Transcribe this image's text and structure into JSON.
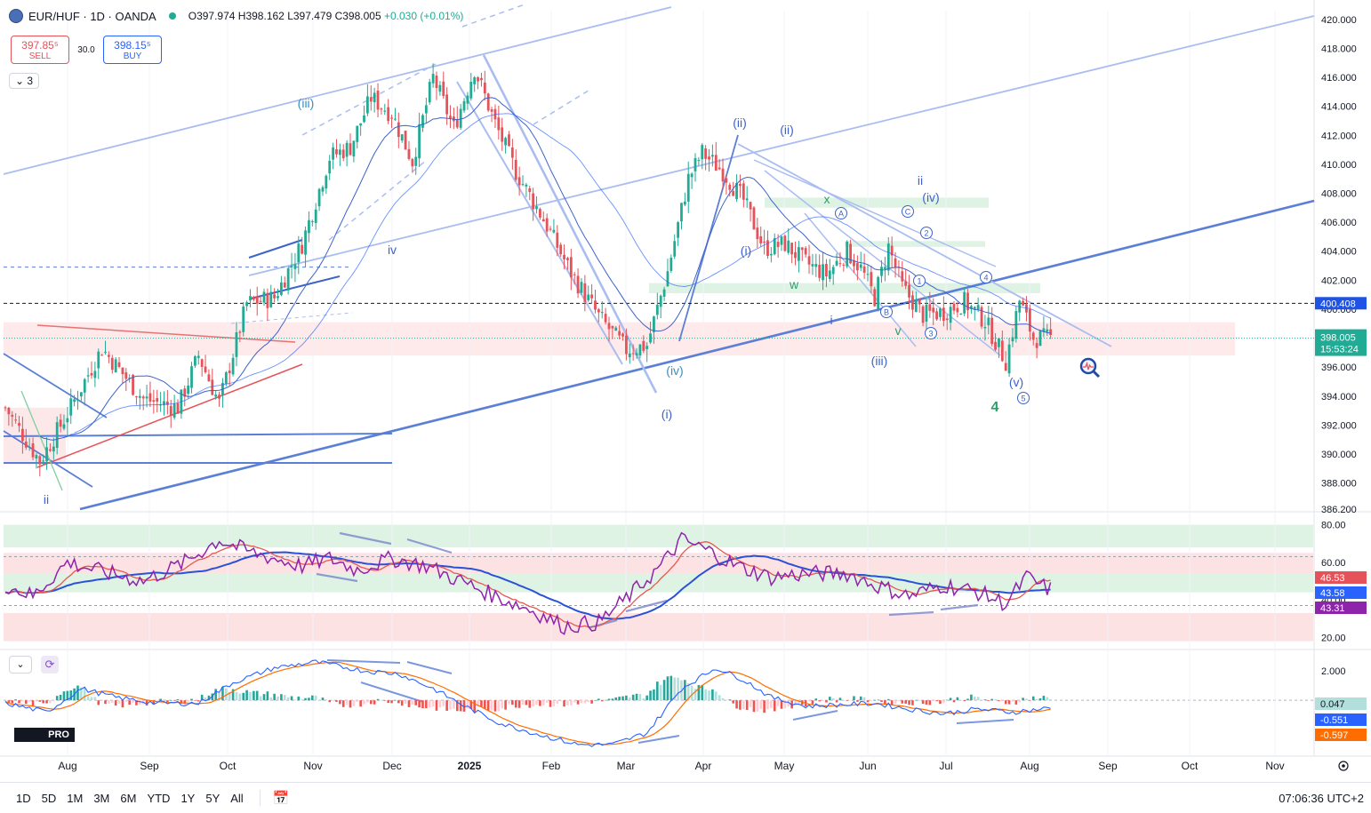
{
  "header": {
    "symbol": "EUR/HUF · 1D · OANDA",
    "open": "O397.974",
    "high": "H398.162",
    "low": "L397.479",
    "close": "C398.005",
    "change": "+0.030 (+0.01%)",
    "sell_price": "397.85⁵",
    "sell_label": "SELL",
    "spread": "30.0",
    "buy_price": "398.15⁵",
    "buy_label": "BUY",
    "indicator_count": "3"
  },
  "colors": {
    "up": "#22ab94",
    "down": "#e5525a",
    "drawing": "#5b7fd6",
    "drawing_light": "#a9bdf0",
    "rsi": "#8e24aa",
    "macd": "#2962ff",
    "signal": "#ff6d00",
    "green_zone": "#dff3e4",
    "red_zone": "#fde2e4"
  },
  "chart_data": [
    {
      "type": "candlestick",
      "symbol": "EUR/HUF",
      "interval": "1D",
      "y_ticks": [
        "420.000",
        "418.000",
        "416.000",
        "414.000",
        "412.000",
        "410.000",
        "408.000",
        "406.000",
        "404.000",
        "402.000",
        "400.000",
        "398.000",
        "396.000",
        "394.000",
        "392.000",
        "390.000",
        "388.000",
        "386.200"
      ],
      "ylim": [
        386.2,
        420.6
      ],
      "x_ticks": [
        "Aug",
        "Sep",
        "Oct",
        "Nov",
        "Dec",
        "2025",
        "Feb",
        "Mar",
        "Apr",
        "May",
        "Jun",
        "Jul",
        "Aug",
        "Sep",
        "Oct",
        "Nov"
      ],
      "last_price": "398.005",
      "countdown": "15:53:24",
      "dashed_level": "400.408",
      "approx_closes": [
        [
          0,
          393.2
        ],
        [
          10,
          389.5
        ],
        [
          18,
          392.8
        ],
        [
          28,
          397.3
        ],
        [
          40,
          393.8
        ],
        [
          50,
          393.2
        ],
        [
          56,
          396.8
        ],
        [
          62,
          393.5
        ],
        [
          70,
          400.4
        ],
        [
          78,
          400.8
        ],
        [
          86,
          404.5
        ],
        [
          94,
          410.5
        ],
        [
          100,
          411.2
        ],
        [
          106,
          414.6
        ],
        [
          112,
          413.5
        ],
        [
          118,
          410.2
        ],
        [
          124,
          416.0
        ],
        [
          130,
          412.5
        ],
        [
          136,
          416.6
        ],
        [
          142,
          412.8
        ],
        [
          148,
          409.5
        ],
        [
          156,
          406.2
        ],
        [
          164,
          402.5
        ],
        [
          172,
          399.5
        ],
        [
          180,
          397.2
        ],
        [
          186,
          397.5
        ],
        [
          192,
          402.6
        ],
        [
          198,
          409.0
        ],
        [
          202,
          410.8
        ],
        [
          208,
          409.5
        ],
        [
          214,
          407.5
        ],
        [
          220,
          404.2
        ],
        [
          226,
          404.5
        ],
        [
          232,
          403.2
        ],
        [
          238,
          402.4
        ],
        [
          244,
          404.0
        ],
        [
          248,
          402.8
        ],
        [
          252,
          400.8
        ],
        [
          256,
          404.3
        ],
        [
          260,
          401.5
        ],
        [
          266,
          399.6
        ],
        [
          272,
          399.8
        ],
        [
          278,
          400.5
        ],
        [
          284,
          399.2
        ],
        [
          290,
          396.4
        ],
        [
          294,
          400.6
        ],
        [
          298,
          398.0
        ],
        [
          302,
          398.0
        ]
      ],
      "labels": [
        "(iii)",
        "iv",
        "ii",
        "(ii)",
        "(ii)",
        "(i)",
        "(iv)",
        "(i)",
        "x",
        "w",
        "i",
        "v",
        "ii",
        "(iv)",
        "(iii)",
        "(v)",
        "4",
        "A",
        "B",
        "C",
        "1",
        "2",
        "3",
        "4",
        "5"
      ]
    },
    {
      "type": "line",
      "name": "RSI",
      "y_ticks": [
        "80.00",
        "60.00",
        "40.00",
        "20.00"
      ],
      "ylim": [
        15,
        85
      ],
      "badges": [
        "46.53",
        "43.58",
        "43.31"
      ],
      "approx_values": [
        [
          0,
          48
        ],
        [
          8,
          42
        ],
        [
          18,
          60
        ],
        [
          28,
          55
        ],
        [
          40,
          50
        ],
        [
          52,
          60
        ],
        [
          62,
          72
        ],
        [
          70,
          66
        ],
        [
          78,
          62
        ],
        [
          86,
          58
        ],
        [
          94,
          62
        ],
        [
          102,
          56
        ],
        [
          112,
          62
        ],
        [
          122,
          58
        ],
        [
          132,
          50
        ],
        [
          142,
          42
        ],
        [
          152,
          35
        ],
        [
          162,
          26
        ],
        [
          172,
          28
        ],
        [
          182,
          44
        ],
        [
          190,
          58
        ],
        [
          196,
          72
        ],
        [
          204,
          66
        ],
        [
          212,
          58
        ],
        [
          222,
          52
        ],
        [
          232,
          54
        ],
        [
          244,
          54
        ],
        [
          252,
          48
        ],
        [
          262,
          42
        ],
        [
          272,
          48
        ],
        [
          282,
          44
        ],
        [
          290,
          38
        ],
        [
          296,
          52
        ],
        [
          302,
          46
        ]
      ]
    },
    {
      "type": "bar",
      "name": "MACD",
      "y_ticks": [
        "2.000",
        "0.047"
      ],
      "ylim": [
        -3.6,
        3.2
      ],
      "badges": [
        "0.047",
        "-0.551",
        "-0.597"
      ],
      "approx_macd": [
        [
          0,
          -0.2
        ],
        [
          12,
          -0.8
        ],
        [
          22,
          0.8
        ],
        [
          32,
          0.2
        ],
        [
          44,
          -0.2
        ],
        [
          56,
          -0.2
        ],
        [
          66,
          1.2
        ],
        [
          78,
          2.2
        ],
        [
          90,
          2.6
        ],
        [
          104,
          2.0
        ],
        [
          114,
          1.8
        ],
        [
          124,
          0.8
        ],
        [
          134,
          -0.5
        ],
        [
          144,
          -1.6
        ],
        [
          156,
          -2.4
        ],
        [
          166,
          -3.0
        ],
        [
          176,
          -3.0
        ],
        [
          186,
          -2.2
        ],
        [
          196,
          0.8
        ],
        [
          206,
          2.2
        ],
        [
          214,
          1.4
        ],
        [
          222,
          0.2
        ],
        [
          232,
          -0.4
        ],
        [
          242,
          -0.3
        ],
        [
          252,
          -0.2
        ],
        [
          262,
          -0.6
        ],
        [
          272,
          -0.9
        ],
        [
          282,
          -0.6
        ],
        [
          292,
          -0.8
        ],
        [
          302,
          -0.55
        ]
      ]
    }
  ],
  "bottom": {
    "ranges": [
      "1D",
      "5D",
      "1M",
      "3M",
      "6M",
      "YTD",
      "1Y",
      "5Y",
      "All"
    ],
    "clock": "07:06:36 UTC+2"
  },
  "branding": {
    "logo": "PRO"
  }
}
